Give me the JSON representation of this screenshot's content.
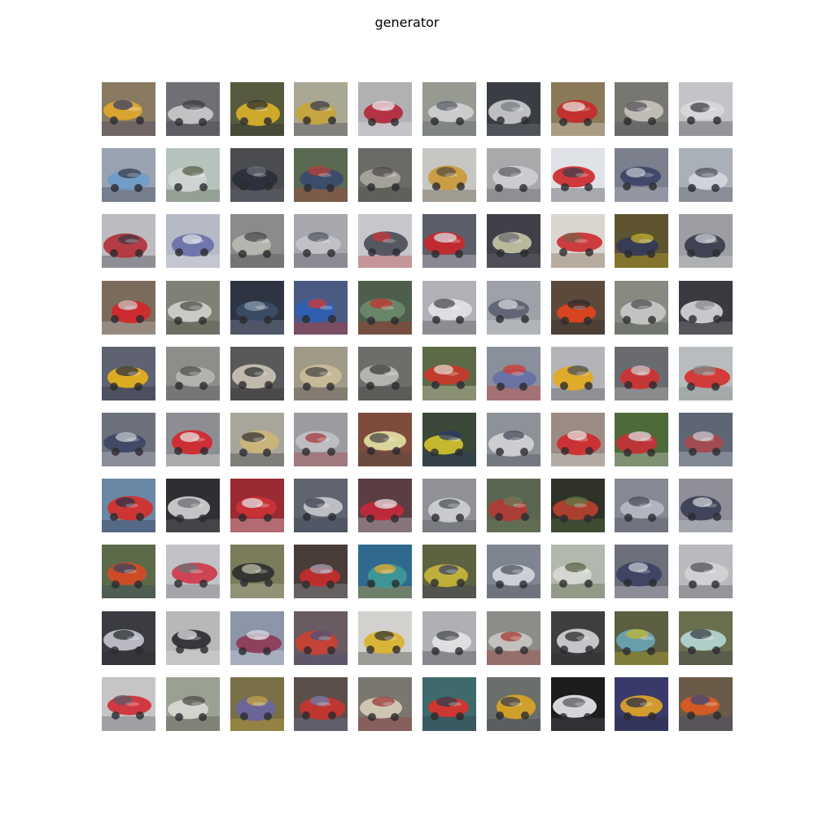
{
  "figure": {
    "title": "generator"
  },
  "grid": {
    "rows": 10,
    "cols": 10,
    "samples": [
      {
        "bg": "#8a7a62",
        "body": "#e0a72c",
        "accent": "#3a3f6a"
      },
      {
        "bg": "#6f7076",
        "body": "#c9c9cc",
        "accent": "#3b3c42"
      },
      {
        "bg": "#575a3e",
        "body": "#d8b02a",
        "accent": "#2c2e2a"
      },
      {
        "bg": "#aaa794",
        "body": "#c8a53a",
        "accent": "#3a3d52"
      },
      {
        "bg": "#b3b0b4",
        "body": "#b3283a",
        "accent": "#e8e8ea"
      },
      {
        "bg": "#969a91",
        "body": "#d0d0d4",
        "accent": "#5a5d66"
      },
      {
        "bg": "#3a3d44",
        "body": "#c9cacc",
        "accent": "#7a7c82"
      },
      {
        "bg": "#8b7a5a",
        "body": "#c52a2a",
        "accent": "#e6e0d8"
      },
      {
        "bg": "#777670",
        "body": "#c6c2b8",
        "accent": "#54535a"
      },
      {
        "bg": "#c4c4c8",
        "body": "#d8d8da",
        "accent": "#3f3f45"
      },
      {
        "bg": "#98a2b0",
        "body": "#6e9cc8",
        "accent": "#3a3e52"
      },
      {
        "bg": "#b6c2bc",
        "body": "#cfd6d2",
        "accent": "#55604a"
      },
      {
        "bg": "#4b4c50",
        "body": "#2a2f3a",
        "accent": "#6a6e7a"
      },
      {
        "bg": "#5a6a52",
        "body": "#3a4a6e",
        "accent": "#b6413a"
      },
      {
        "bg": "#6b6a66",
        "body": "#a9a6a0",
        "accent": "#4c4b48"
      },
      {
        "bg": "#c8c6c2",
        "body": "#c99a3a",
        "accent": "#5a4e3a"
      },
      {
        "bg": "#a9a9ab",
        "body": "#cfcfd2",
        "accent": "#5d5e63"
      },
      {
        "bg": "#dfe2e6",
        "body": "#cc2a2e",
        "accent": "#3e3f48"
      },
      {
        "bg": "#7c7f8c",
        "body": "#3a4466",
        "accent": "#bfc3cc"
      },
      {
        "bg": "#aab0b8",
        "body": "#d2d6dc",
        "accent": "#4d5058"
      },
      {
        "bg": "#bcbcc0",
        "body": "#b4303a",
        "accent": "#3c3a44"
      },
      {
        "bg": "#b6bac6",
        "body": "#6a70a8",
        "accent": "#dfe0e6"
      },
      {
        "bg": "#8b8c8a",
        "body": "#b9b8b2",
        "accent": "#4a4a4c"
      },
      {
        "bg": "#a6a8ae",
        "body": "#c2c3c8",
        "accent": "#555760"
      },
      {
        "bg": "#c7c7cb",
        "body": "#4b4e58",
        "accent": "#c4383a"
      },
      {
        "bg": "#5c5e6a",
        "body": "#c9272e",
        "accent": "#dadbe0"
      },
      {
        "bg": "#3f4048",
        "body": "#c5c3a4",
        "accent": "#6b6e76"
      },
      {
        "bg": "#d9d6d0",
        "body": "#cc2f31",
        "accent": "#7c5e4a"
      },
      {
        "bg": "#5e5530",
        "body": "#34395a",
        "accent": "#c8b12a"
      },
      {
        "bg": "#9d9ea3",
        "body": "#383c4c",
        "accent": "#cfd0d4"
      },
      {
        "bg": "#7b6b5c",
        "body": "#d3262b",
        "accent": "#c8c4c0"
      },
      {
        "bg": "#7d8176",
        "body": "#cfd0cc",
        "accent": "#4e5044"
      },
      {
        "bg": "#2e3442",
        "body": "#3b4c66",
        "accent": "#8a97a8"
      },
      {
        "bg": "#4a5a82",
        "body": "#2f5fb3",
        "accent": "#d13a30"
      },
      {
        "bg": "#4d5f4c",
        "body": "#6d8a6c",
        "accent": "#c4342e"
      },
      {
        "bg": "#b0b1b6",
        "body": "#e2e2e4",
        "accent": "#4a4b50"
      },
      {
        "bg": "#9ea2a8",
        "body": "#5d6170",
        "accent": "#d5d6da"
      },
      {
        "bg": "#5b4a3c",
        "body": "#e1441e",
        "accent": "#2e2a2c"
      },
      {
        "bg": "#868a80",
        "body": "#c8c8c6",
        "accent": "#4e4f52"
      },
      {
        "bg": "#3a3b40",
        "body": "#d5d5d8",
        "accent": "#88898e"
      },
      {
        "bg": "#5f6270",
        "body": "#e6b21c",
        "accent": "#2e3040"
      },
      {
        "bg": "#8e8d8a",
        "body": "#b7b5b0",
        "accent": "#4f4e4c"
      },
      {
        "bg": "#59585a",
        "body": "#c8c2b4",
        "accent": "#303032"
      },
      {
        "bg": "#a09a88",
        "body": "#c9bc98",
        "accent": "#4a4846"
      },
      {
        "bg": "#6d6e6a",
        "body": "#b9bab6",
        "accent": "#3c3d3a"
      },
      {
        "bg": "#5c6a48",
        "body": "#c8382a",
        "accent": "#dfd6c8"
      },
      {
        "bg": "#8a8f9c",
        "body": "#6670a6",
        "accent": "#d23a30"
      },
      {
        "bg": "#b2b4b8",
        "body": "#e4a91e",
        "accent": "#4c4d55"
      },
      {
        "bg": "#6a6b6e",
        "body": "#cf3232",
        "accent": "#c8c8cb"
      },
      {
        "bg": "#b8bcbe",
        "body": "#d2302e",
        "accent": "#7e8a84"
      },
      {
        "bg": "#6d717e",
        "body": "#3d4566",
        "accent": "#c4c6cc"
      },
      {
        "bg": "#8c8e94",
        "body": "#d1272b",
        "accent": "#e7e2e0"
      },
      {
        "bg": "#a8a59a",
        "body": "#ccb57a",
        "accent": "#36373a"
      },
      {
        "bg": "#9c9ba0",
        "body": "#c1c0c4",
        "accent": "#a63a3e"
      },
      {
        "bg": "#7e4c3c",
        "body": "#e3dfa3",
        "accent": "#4a4744"
      },
      {
        "bg": "#3b4738",
        "body": "#d3c22e",
        "accent": "#2a3a6a"
      },
      {
        "bg": "#8d9198",
        "body": "#d1d2d6",
        "accent": "#474a55"
      },
      {
        "bg": "#9a8c84",
        "body": "#cf2a2e",
        "accent": "#e4e1e0"
      },
      {
        "bg": "#4f6a3a",
        "body": "#c5323a",
        "accent": "#d9d9dc"
      },
      {
        "bg": "#5e6674",
        "body": "#a74a4e",
        "accent": "#c6cad2"
      },
      {
        "bg": "#6a88a6",
        "body": "#d42f2a",
        "accent": "#2c3048"
      },
      {
        "bg": "#2f2f33",
        "body": "#d1d1d3",
        "accent": "#6e6f74"
      },
      {
        "bg": "#9a2b33",
        "body": "#cc3236",
        "accent": "#e3e0e2"
      },
      {
        "bg": "#5f6470",
        "body": "#c5c6ca",
        "accent": "#3a3e4c"
      },
      {
        "bg": "#5a3e44",
        "body": "#c2283a",
        "accent": "#dcdde0"
      },
      {
        "bg": "#8f9196",
        "body": "#cdcfd2",
        "accent": "#4f5258"
      },
      {
        "bg": "#5b6650",
        "body": "#b33a34",
        "accent": "#6a7b58"
      },
      {
        "bg": "#2e3228",
        "body": "#b7412f",
        "accent": "#5e7a46"
      },
      {
        "bg": "#868893",
        "body": "#b6b8c2",
        "accent": "#4a4d58"
      },
      {
        "bg": "#8e8f97",
        "body": "#3b3f55",
        "accent": "#cfd0d6"
      },
      {
        "bg": "#5c6a4a",
        "body": "#d64a24",
        "accent": "#394660"
      },
      {
        "bg": "#c1c2c6",
        "body": "#cf3a4a",
        "accent": "#6e7076"
      },
      {
        "bg": "#7a7c5c",
        "body": "#2c302c",
        "accent": "#bfbea8"
      },
      {
        "bg": "#4a3c38",
        "body": "#c52e2e",
        "accent": "#9ea2b0"
      },
      {
        "bg": "#2f6a8e",
        "body": "#3f9a96",
        "accent": "#e6a62a"
      },
      {
        "bg": "#5e6240",
        "body": "#c7b43a",
        "accent": "#3a4066"
      },
      {
        "bg": "#7f8590",
        "body": "#d4d6dc",
        "accent": "#4f535e"
      },
      {
        "bg": "#b2b8ae",
        "body": "#d6d8d4",
        "accent": "#5a6048"
      },
      {
        "bg": "#6d6f7a",
        "body": "#3b4262",
        "accent": "#c5c7d0"
      },
      {
        "bg": "#b9babd",
        "body": "#d2d3d6",
        "accent": "#4e5056"
      },
      {
        "bg": "#3a3c42",
        "body": "#c4c6cc",
        "accent": "#2a2c30"
      },
      {
        "bg": "#b8b8b8",
        "body": "#2a2c32",
        "accent": "#dedee0"
      },
      {
        "bg": "#8d95a8",
        "body": "#8e3a56",
        "accent": "#d9dce4"
      },
      {
        "bg": "#6a5a62",
        "body": "#cc4032",
        "accent": "#4a5478"
      },
      {
        "bg": "#d4d2ce",
        "body": "#d8b22a",
        "accent": "#3a3832"
      },
      {
        "bg": "#aeb0b4",
        "body": "#e3e3e5",
        "accent": "#3e4048"
      },
      {
        "bg": "#8c8c88",
        "body": "#c7c6c2",
        "accent": "#a63a30"
      },
      {
        "bg": "#3c3e40",
        "body": "#cfd0d2",
        "accent": "#2a2b2e"
      },
      {
        "bg": "#5c5e40",
        "body": "#6aa4b4",
        "accent": "#c2b632"
      },
      {
        "bg": "#6a704e",
        "body": "#b6d6d4",
        "accent": "#3a3e44"
      },
      {
        "bg": "#c6c4c4",
        "body": "#d12c36",
        "accent": "#5a5c66"
      },
      {
        "bg": "#9aa092",
        "body": "#d8d8d4",
        "accent": "#4c4e44"
      },
      {
        "bg": "#7a7048",
        "body": "#6a64a2",
        "accent": "#c3a63a"
      },
      {
        "bg": "#5c4e4a",
        "body": "#c8342e",
        "accent": "#6a7ea8"
      },
      {
        "bg": "#7a7670",
        "body": "#d6ccb8",
        "accent": "#9c3a36"
      },
      {
        "bg": "#3e6a6c",
        "body": "#d8342c",
        "accent": "#2e3c4a"
      },
      {
        "bg": "#6a6f6c",
        "body": "#d8a424",
        "accent": "#3c3e4a"
      },
      {
        "bg": "#1c1c1e",
        "body": "#e6e6e8",
        "accent": "#5a5b60"
      },
      {
        "bg": "#3a3a6a",
        "body": "#e0a42a",
        "accent": "#2c2e44"
      },
      {
        "bg": "#6a5a48",
        "body": "#dc5a22",
        "accent": "#3a4a7a"
      }
    ]
  }
}
